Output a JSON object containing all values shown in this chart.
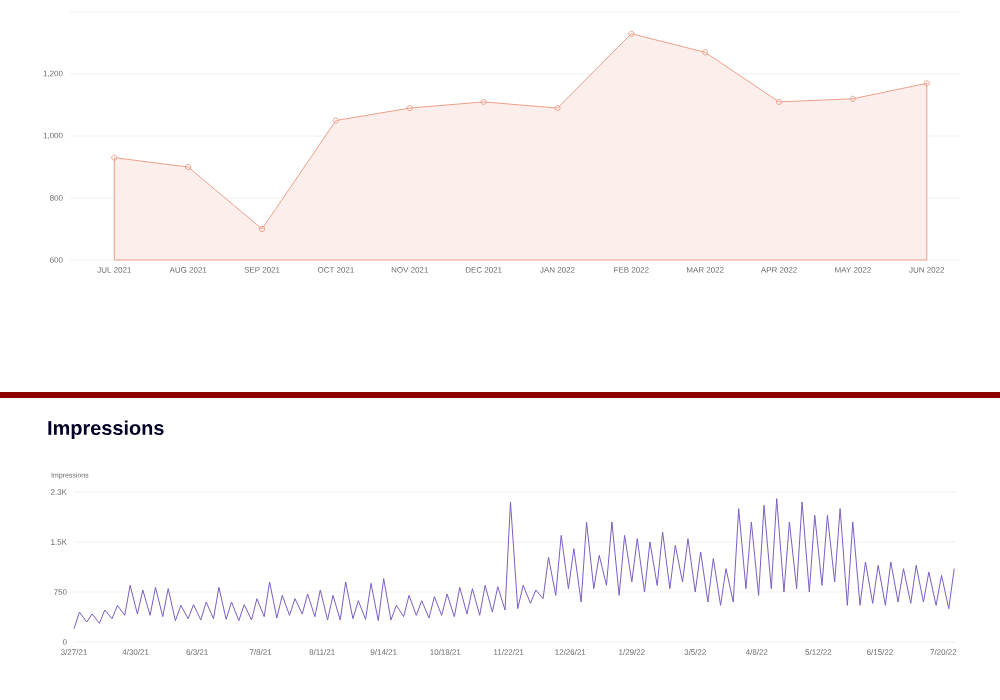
{
  "chart_data": [
    {
      "type": "area",
      "categories": [
        "JUL 2021",
        "AUG 2021",
        "SEP 2021",
        "OCT 2021",
        "NOV 2021",
        "DEC 2021",
        "JAN 2022",
        "FEB 2022",
        "MAR 2022",
        "APR 2022",
        "MAY 2022",
        "JUN 2022"
      ],
      "values": [
        930,
        900,
        700,
        1050,
        1090,
        1110,
        1090,
        1330,
        1270,
        1110,
        1120,
        1170
      ],
      "color": "#eda08c",
      "marker": "circle",
      "grid": "y",
      "ylim": [
        600,
        1400
      ],
      "yticks": [
        600,
        800,
        {
          "value": 1000,
          "label": "1,000"
        },
        {
          "value": 1200,
          "label": "1,200"
        },
        {
          "value": 1400,
          "label": null
        }
      ]
    },
    {
      "type": "line",
      "title": "Impressions",
      "ylabel": "Impressions",
      "color": "#7b5cc4",
      "grid": "y",
      "x": [
        "2021-03-27",
        "2021-03-30",
        "2021-04-03",
        "2021-04-06",
        "2021-04-10",
        "2021-04-13",
        "2021-04-17",
        "2021-04-20",
        "2021-04-24",
        "2021-04-27",
        "2021-05-01",
        "2021-05-04",
        "2021-05-08",
        "2021-05-11",
        "2021-05-15",
        "2021-05-18",
        "2021-05-22",
        "2021-05-25",
        "2021-05-29",
        "2021-06-01",
        "2021-06-05",
        "2021-06-08",
        "2021-06-12",
        "2021-06-15",
        "2021-06-19",
        "2021-06-22",
        "2021-06-26",
        "2021-06-29",
        "2021-07-03",
        "2021-07-06",
        "2021-07-10",
        "2021-07-13",
        "2021-07-17",
        "2021-07-20",
        "2021-07-24",
        "2021-07-27",
        "2021-07-31",
        "2021-08-03",
        "2021-08-07",
        "2021-08-10",
        "2021-08-14",
        "2021-08-17",
        "2021-08-21",
        "2021-08-24",
        "2021-08-28",
        "2021-08-31",
        "2021-09-04",
        "2021-09-07",
        "2021-09-11",
        "2021-09-14",
        "2021-09-18",
        "2021-09-21",
        "2021-09-25",
        "2021-09-28",
        "2021-10-02",
        "2021-10-05",
        "2021-10-09",
        "2021-10-12",
        "2021-10-16",
        "2021-10-19",
        "2021-10-23",
        "2021-10-26",
        "2021-10-30",
        "2021-11-02",
        "2021-11-06",
        "2021-11-09",
        "2021-11-13",
        "2021-11-16",
        "2021-11-20",
        "2021-11-23",
        "2021-11-27",
        "2021-11-30",
        "2021-12-04",
        "2021-12-07",
        "2021-12-11",
        "2021-12-14",
        "2021-12-18",
        "2021-12-21",
        "2021-12-25",
        "2021-12-28",
        "2022-01-01",
        "2022-01-04",
        "2022-01-08",
        "2022-01-11",
        "2022-01-15",
        "2022-01-18",
        "2022-01-22",
        "2022-01-25",
        "2022-01-29",
        "2022-02-01",
        "2022-02-05",
        "2022-02-08",
        "2022-02-12",
        "2022-02-15",
        "2022-02-19",
        "2022-02-22",
        "2022-02-26",
        "2022-03-01",
        "2022-03-05",
        "2022-03-08",
        "2022-03-12",
        "2022-03-15",
        "2022-03-19",
        "2022-03-22",
        "2022-03-26",
        "2022-03-29",
        "2022-04-02",
        "2022-04-05",
        "2022-04-09",
        "2022-04-12",
        "2022-04-16",
        "2022-04-19",
        "2022-04-23",
        "2022-04-26",
        "2022-04-30",
        "2022-05-03",
        "2022-05-07",
        "2022-05-10",
        "2022-05-14",
        "2022-05-17",
        "2022-05-21",
        "2022-05-24",
        "2022-05-28",
        "2022-05-31",
        "2022-06-04",
        "2022-06-07",
        "2022-06-11",
        "2022-06-14",
        "2022-06-18",
        "2022-06-21",
        "2022-06-25",
        "2022-06-28",
        "2022-07-02",
        "2022-07-05",
        "2022-07-09",
        "2022-07-12",
        "2022-07-16",
        "2022-07-19",
        "2022-07-23",
        "2022-07-26"
      ],
      "values": [
        200,
        450,
        300,
        420,
        280,
        480,
        350,
        550,
        400,
        850,
        420,
        780,
        400,
        820,
        380,
        800,
        320,
        550,
        350,
        560,
        330,
        600,
        350,
        820,
        340,
        600,
        320,
        560,
        330,
        650,
        380,
        900,
        360,
        700,
        400,
        650,
        420,
        720,
        380,
        780,
        330,
        700,
        330,
        900,
        350,
        620,
        340,
        880,
        320,
        950,
        330,
        550,
        380,
        700,
        400,
        620,
        360,
        680,
        400,
        720,
        380,
        820,
        420,
        800,
        400,
        850,
        450,
        830,
        480,
        2100,
        500,
        850,
        580,
        780,
        650,
        1270,
        700,
        1600,
        800,
        1400,
        600,
        1800,
        800,
        1300,
        850,
        1800,
        700,
        1600,
        900,
        1550,
        750,
        1500,
        850,
        1650,
        800,
        1450,
        900,
        1550,
        750,
        1350,
        600,
        1250,
        550,
        1100,
        600,
        2000,
        800,
        1800,
        700,
        2050,
        800,
        2150,
        750,
        1800,
        800,
        2100,
        750,
        1900,
        850,
        1900,
        900,
        2000,
        550,
        1800,
        550,
        1200,
        580,
        1150,
        550,
        1200,
        600,
        1100,
        580,
        1150,
        600,
        1050,
        550,
        1000,
        500,
        1100
      ],
      "xlim": [
        "2021-03-27",
        "2022-07-27"
      ],
      "xticks": [
        {
          "value": "2021-03-27",
          "label": "3/27/21"
        },
        {
          "value": "2021-04-30",
          "label": "4/30/21"
        },
        {
          "value": "2021-06-03",
          "label": "6/3/21"
        },
        {
          "value": "2021-07-08",
          "label": "7/8/21"
        },
        {
          "value": "2021-08-11",
          "label": "8/11/21"
        },
        {
          "value": "2021-09-14",
          "label": "9/14/21"
        },
        {
          "value": "2021-10-18",
          "label": "10/18/21"
        },
        {
          "value": "2021-11-22",
          "label": "11/22/21"
        },
        {
          "value": "2021-12-26",
          "label": "12/26/21"
        },
        {
          "value": "2022-01-29",
          "label": "1/29/22"
        },
        {
          "value": "2022-03-05",
          "label": "3/5/22"
        },
        {
          "value": "2022-04-08",
          "label": "4/8/22"
        },
        {
          "value": "2022-05-12",
          "label": "5/12/22"
        },
        {
          "value": "2022-06-15",
          "label": "6/15/22"
        },
        {
          "value": "2022-07-20",
          "label": "7/20/22"
        }
      ],
      "ylim": [
        0,
        2250
      ],
      "yticks": [
        0,
        750,
        {
          "value": 1500,
          "label": "1.5K"
        },
        {
          "value": 2250,
          "label": "2.3K"
        }
      ]
    }
  ]
}
